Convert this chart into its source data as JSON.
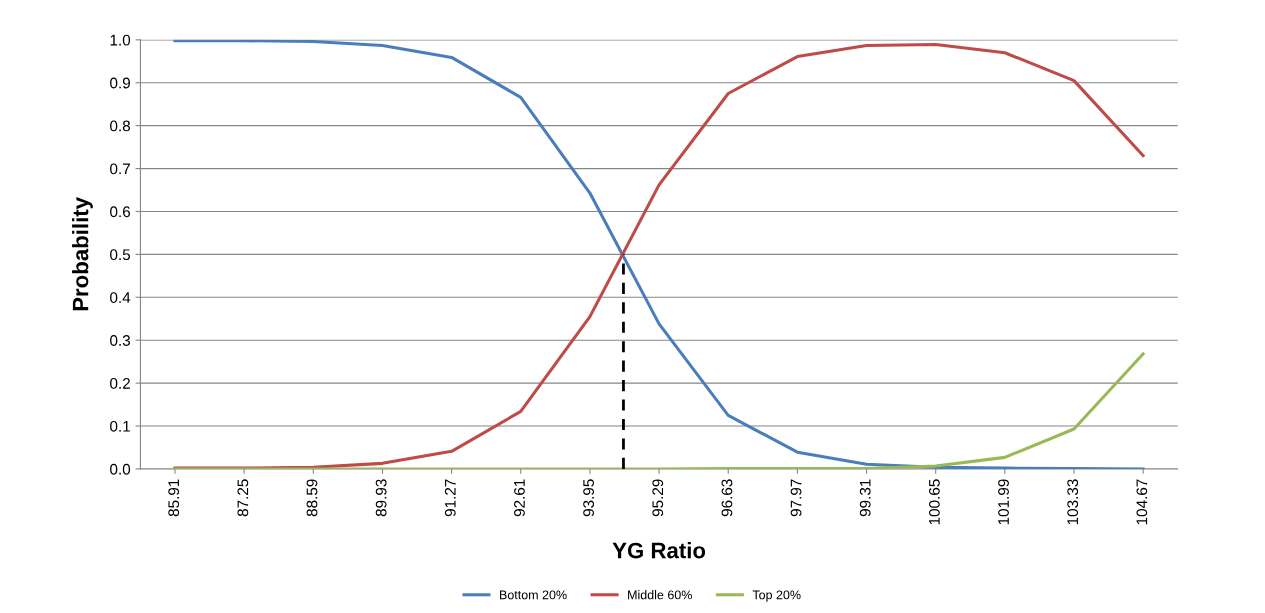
{
  "chart_data": {
    "type": "line",
    "xlabel": "YG Ratio",
    "ylabel": "Probability",
    "x": [
      85.91,
      87.25,
      88.59,
      89.93,
      91.27,
      92.61,
      93.95,
      95.29,
      96.63,
      97.97,
      99.31,
      100.65,
      101.99,
      103.33,
      104.67
    ],
    "xlim": [
      85.24,
      105.34
    ],
    "xticks": [
      85.91,
      87.25,
      88.59,
      89.93,
      91.27,
      92.61,
      93.95,
      95.29,
      96.63,
      97.97,
      99.31,
      100.65,
      101.99,
      103.33,
      104.67
    ],
    "ylim": [
      0,
      1
    ],
    "yticks": [
      {
        "value": 0,
        "label": "0.0"
      },
      0.1,
      0.2,
      0.3,
      0.4,
      0.5,
      0.6,
      0.7,
      0.8,
      0.9,
      {
        "value": 1,
        "label": "1.0"
      }
    ],
    "grid": "y",
    "legend": "bottom",
    "marker": "none",
    "series": [
      {
        "name": "Bottom 20%",
        "color": "#4a7ebb",
        "values": [
          0.998,
          0.998,
          0.996,
          0.987,
          0.959,
          0.866,
          0.643,
          0.338,
          0.125,
          0.039,
          0.011,
          0.004,
          0.002,
          0.001,
          0.0
        ]
      },
      {
        "name": "Middle 60%",
        "color": "#be4b48",
        "values": [
          0.002,
          0.002,
          0.004,
          0.013,
          0.041,
          0.134,
          0.355,
          0.662,
          0.875,
          0.961,
          0.987,
          0.989,
          0.97,
          0.905,
          0.73
        ]
      },
      {
        "name": "Top 20%",
        "color": "#98b954",
        "values": [
          0.0,
          0.0,
          0.0,
          0.0,
          0.0,
          0.0,
          0.0,
          0.0,
          0.001,
          0.001,
          0.001,
          0.007,
          0.027,
          0.093,
          0.268
        ]
      },
      {
        "type": "line",
        "color": "#000000",
        "line_style": "dashed",
        "x": [
          94.6,
          94.6
        ],
        "values": [
          0,
          0.5
        ]
      }
    ]
  }
}
